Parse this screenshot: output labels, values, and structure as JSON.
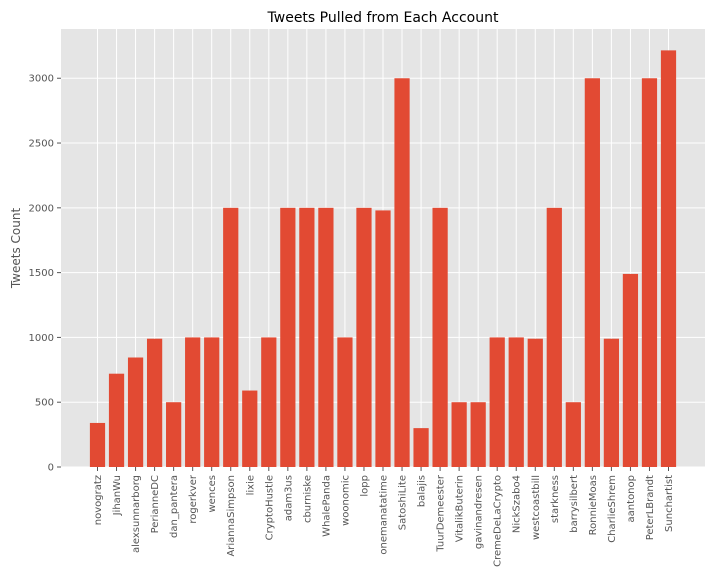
{
  "chart_data": {
    "type": "bar",
    "title": "Tweets Pulled from Each Account",
    "xlabel": "",
    "ylabel": "Tweets Count",
    "ylim": [
      0,
      3380
    ],
    "yticks": [
      0,
      500,
      1000,
      1500,
      2000,
      2500,
      3000
    ],
    "grid": true,
    "colors": {
      "bar": "#E24A33",
      "plot_bg": "#E5E5E5",
      "grid": "#FFFFFF"
    },
    "categories": [
      "novogratz",
      "JihanWu",
      "alexsunnarborg",
      "PerianneDC",
      "dan_pantera",
      "rogerkver",
      "wences",
      "AriannaSimpson",
      "lixie",
      "CryptoHustle",
      "adam3us",
      "cburniske",
      "WhalePanda",
      "woonomic",
      "lopp",
      "onemanatatime",
      "SatoshiLite",
      "balajis",
      "TuurDemeester",
      "VitalikButerin",
      "gavinandresen",
      "CremeDeLaCrypto",
      "NickSzabo4",
      "westcoastbill",
      "starkness",
      "barrysilbert",
      "RonnieMoas",
      "CharlieShrem",
      "aantonop",
      "PeterLBrandt",
      "Sunchartist"
    ],
    "values": [
      340,
      720,
      845,
      990,
      500,
      1000,
      1000,
      2000,
      590,
      1000,
      2000,
      2000,
      2000,
      1000,
      2000,
      1980,
      3000,
      300,
      2000,
      500,
      500,
      1000,
      1000,
      990,
      2000,
      500,
      3000,
      990,
      1490,
      3000,
      3215
    ]
  }
}
